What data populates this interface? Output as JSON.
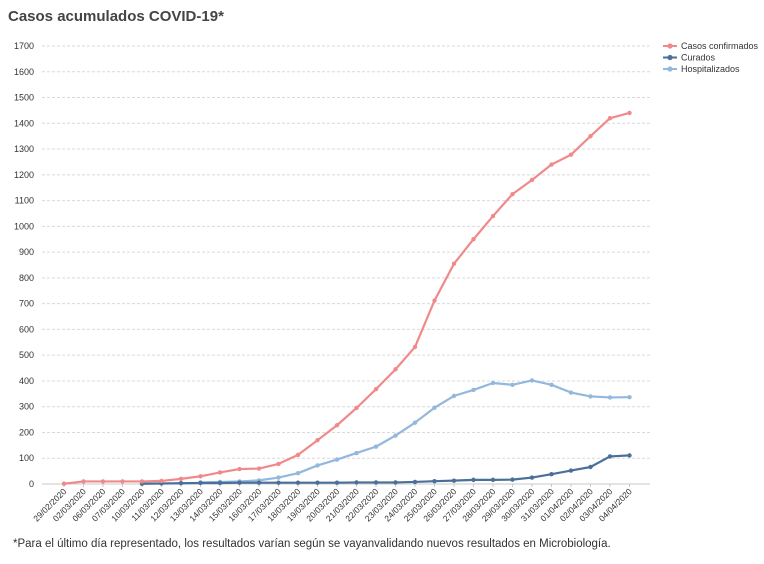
{
  "title": "Casos acumulados COVID-19*",
  "footnote": "*Para el último día representado, los resultados varían según se vayanvalidando nuevos resultados en Microbiología.",
  "chart_data": {
    "type": "line",
    "title": "Casos acumulados COVID-19*",
    "xlabel": "",
    "ylabel": "",
    "ylim": [
      0,
      1700
    ],
    "yticks": [
      0,
      100,
      200,
      300,
      400,
      500,
      600,
      700,
      800,
      900,
      1000,
      1100,
      1200,
      1300,
      1400,
      1500,
      1600,
      1700
    ],
    "grid": true,
    "legend_position": "top-right",
    "categories": [
      "29/02/2020",
      "02/03/2020",
      "06/03/2020",
      "07/03/2020",
      "10/03/2020",
      "11/03/2020",
      "12/03/2020",
      "13/03/2020",
      "14/03/2020",
      "15/03/2020",
      "16/03/2020",
      "17/03/2020",
      "18/03/2020",
      "19/03/2020",
      "20/03/2020",
      "21/03/2020",
      "22/03/2020",
      "23/03/2020",
      "24/03/2020",
      "25/03/2020",
      "26/03/2020",
      "27/03/2020",
      "28/03/2020",
      "29/03/2020",
      "30/03/2020",
      "31/03/2020",
      "01/04/2020",
      "02/04/2020",
      "03/04/2020",
      "04/04/2020"
    ],
    "series": [
      {
        "name": "Casos confirmados",
        "color": "#f08a8a",
        "values": [
          1,
          10,
          10,
          10,
          10,
          12,
          20,
          30,
          45,
          58,
          60,
          78,
          113,
          170,
          228,
          295,
          368,
          445,
          532,
          712,
          855,
          950,
          1040,
          1125,
          1180,
          1240,
          1278,
          1350,
          1420,
          1440
        ]
      },
      {
        "name": "Curados",
        "color": "#4a6f9a",
        "values": [
          null,
          null,
          null,
          null,
          1,
          2,
          3,
          4,
          4,
          5,
          5,
          5,
          5,
          5,
          5,
          6,
          6,
          6,
          8,
          11,
          13,
          16,
          16,
          17,
          25,
          38,
          52,
          66,
          107,
          111
        ]
      },
      {
        "name": "Hospitalizados",
        "color": "#92b8dc",
        "values": [
          null,
          null,
          null,
          null,
          null,
          null,
          null,
          6,
          8,
          10,
          14,
          25,
          42,
          72,
          95,
          120,
          145,
          188,
          238,
          296,
          342,
          365,
          392,
          385,
          402,
          385,
          355,
          340,
          336,
          337
        ]
      }
    ]
  }
}
